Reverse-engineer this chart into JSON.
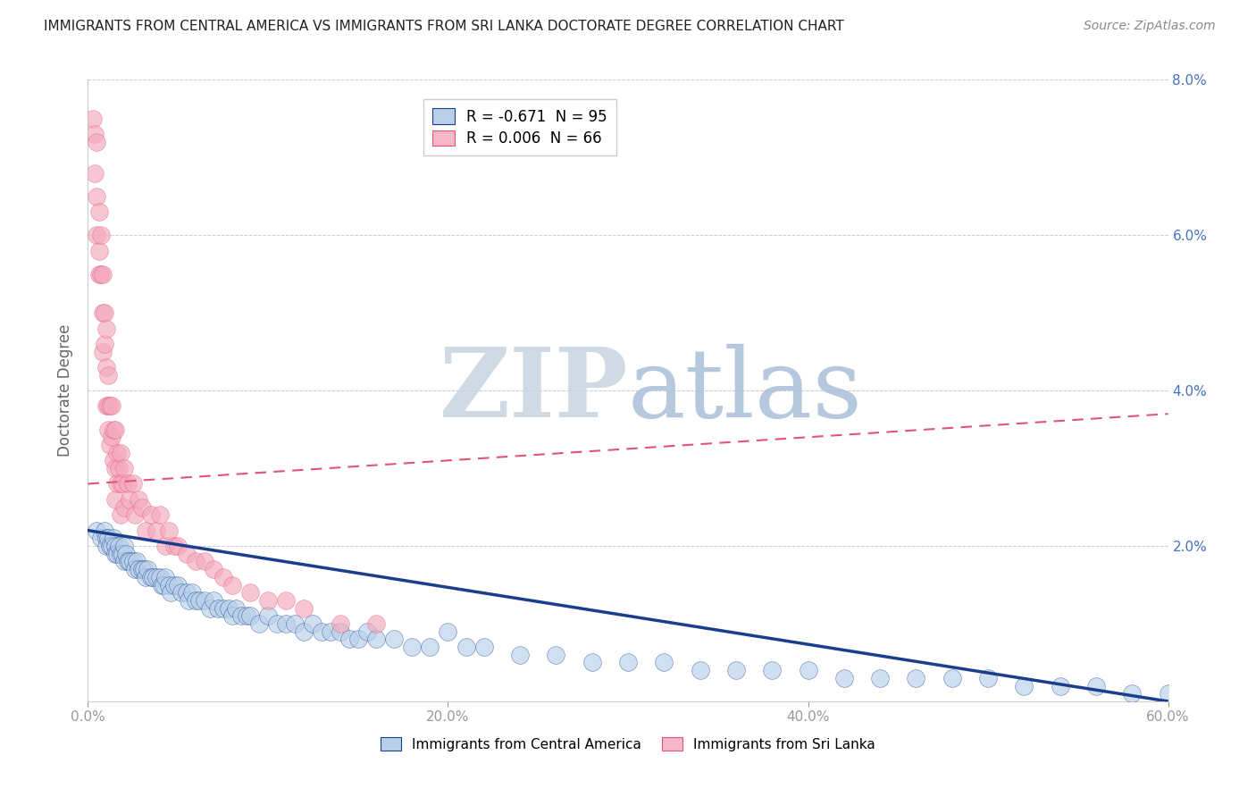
{
  "title": "IMMIGRANTS FROM CENTRAL AMERICA VS IMMIGRANTS FROM SRI LANKA DOCTORATE DEGREE CORRELATION CHART",
  "source": "Source: ZipAtlas.com",
  "ylabel": "Doctorate Degree",
  "xlabel": "",
  "xlim": [
    0.0,
    0.6
  ],
  "ylim": [
    0.0,
    0.08
  ],
  "xtick_labels": [
    "0.0%",
    "20.0%",
    "40.0%",
    "60.0%"
  ],
  "xtick_vals": [
    0.0,
    0.2,
    0.4,
    0.6
  ],
  "ytick_labels_right": [
    "",
    "2.0%",
    "4.0%",
    "6.0%",
    "8.0%"
  ],
  "ytick_vals": [
    0.0,
    0.02,
    0.04,
    0.06,
    0.08
  ],
  "legend_blue_label": "R = -0.671  N = 95",
  "legend_pink_label": "R = 0.006  N = 66",
  "legend_blue_color": "#b8d0ea",
  "legend_pink_color": "#f4b8c8",
  "trend_blue_color": "#1a3e8c",
  "trend_pink_color": "#e05575",
  "scatter_blue_color": "#b8d0ea",
  "scatter_pink_color": "#f4a8be",
  "watermark_zip": "ZIP",
  "watermark_atlas": "atlas",
  "blue_R": -0.671,
  "blue_N": 95,
  "pink_R": 0.006,
  "pink_N": 66,
  "blue_trend_x0": 0.0,
  "blue_trend_y0": 0.022,
  "blue_trend_x1": 0.6,
  "blue_trend_y1": 0.0,
  "pink_trend_x0": 0.0,
  "pink_trend_y0": 0.028,
  "pink_trend_x1": 0.6,
  "pink_trend_y1": 0.037,
  "grid_color": "#cccccc",
  "bg_color": "#ffffff",
  "title_color": "#222222",
  "axis_label_color": "#666666",
  "tick_color": "#999999",
  "watermark_color_zip": "#c8d4e0",
  "watermark_color_atlas": "#a8bfd8",
  "blue_x": [
    0.005,
    0.007,
    0.009,
    0.01,
    0.01,
    0.011,
    0.012,
    0.013,
    0.014,
    0.015,
    0.015,
    0.016,
    0.017,
    0.018,
    0.019,
    0.02,
    0.02,
    0.021,
    0.022,
    0.023,
    0.025,
    0.026,
    0.027,
    0.028,
    0.03,
    0.031,
    0.032,
    0.033,
    0.035,
    0.036,
    0.038,
    0.04,
    0.041,
    0.042,
    0.043,
    0.045,
    0.046,
    0.048,
    0.05,
    0.052,
    0.055,
    0.056,
    0.058,
    0.06,
    0.062,
    0.065,
    0.068,
    0.07,
    0.072,
    0.075,
    0.078,
    0.08,
    0.082,
    0.085,
    0.088,
    0.09,
    0.095,
    0.1,
    0.105,
    0.11,
    0.115,
    0.12,
    0.125,
    0.13,
    0.135,
    0.14,
    0.145,
    0.15,
    0.155,
    0.16,
    0.17,
    0.18,
    0.19,
    0.2,
    0.21,
    0.22,
    0.24,
    0.26,
    0.28,
    0.3,
    0.32,
    0.34,
    0.36,
    0.38,
    0.4,
    0.42,
    0.44,
    0.46,
    0.48,
    0.5,
    0.52,
    0.54,
    0.56,
    0.58,
    0.6
  ],
  "blue_y": [
    0.022,
    0.021,
    0.022,
    0.021,
    0.02,
    0.021,
    0.02,
    0.02,
    0.021,
    0.02,
    0.019,
    0.019,
    0.02,
    0.019,
    0.019,
    0.02,
    0.018,
    0.019,
    0.018,
    0.018,
    0.018,
    0.017,
    0.018,
    0.017,
    0.017,
    0.017,
    0.016,
    0.017,
    0.016,
    0.016,
    0.016,
    0.016,
    0.015,
    0.015,
    0.016,
    0.015,
    0.014,
    0.015,
    0.015,
    0.014,
    0.014,
    0.013,
    0.014,
    0.013,
    0.013,
    0.013,
    0.012,
    0.013,
    0.012,
    0.012,
    0.012,
    0.011,
    0.012,
    0.011,
    0.011,
    0.011,
    0.01,
    0.011,
    0.01,
    0.01,
    0.01,
    0.009,
    0.01,
    0.009,
    0.009,
    0.009,
    0.008,
    0.008,
    0.009,
    0.008,
    0.008,
    0.007,
    0.007,
    0.009,
    0.007,
    0.007,
    0.006,
    0.006,
    0.005,
    0.005,
    0.005,
    0.004,
    0.004,
    0.004,
    0.004,
    0.003,
    0.003,
    0.003,
    0.003,
    0.003,
    0.002,
    0.002,
    0.002,
    0.001,
    0.001
  ],
  "pink_x": [
    0.003,
    0.004,
    0.004,
    0.005,
    0.005,
    0.005,
    0.006,
    0.006,
    0.006,
    0.007,
    0.007,
    0.008,
    0.008,
    0.008,
    0.009,
    0.009,
    0.01,
    0.01,
    0.01,
    0.011,
    0.011,
    0.011,
    0.012,
    0.012,
    0.013,
    0.013,
    0.014,
    0.014,
    0.015,
    0.015,
    0.015,
    0.016,
    0.016,
    0.017,
    0.018,
    0.018,
    0.018,
    0.019,
    0.02,
    0.02,
    0.022,
    0.023,
    0.025,
    0.026,
    0.028,
    0.03,
    0.032,
    0.035,
    0.038,
    0.04,
    0.043,
    0.045,
    0.048,
    0.05,
    0.055,
    0.06,
    0.065,
    0.07,
    0.075,
    0.08,
    0.09,
    0.1,
    0.11,
    0.12,
    0.14,
    0.16
  ],
  "pink_y": [
    0.075,
    0.073,
    0.068,
    0.072,
    0.065,
    0.06,
    0.063,
    0.058,
    0.055,
    0.06,
    0.055,
    0.055,
    0.05,
    0.045,
    0.05,
    0.046,
    0.048,
    0.043,
    0.038,
    0.042,
    0.038,
    0.035,
    0.038,
    0.033,
    0.038,
    0.034,
    0.035,
    0.031,
    0.035,
    0.03,
    0.026,
    0.032,
    0.028,
    0.03,
    0.032,
    0.028,
    0.024,
    0.028,
    0.03,
    0.025,
    0.028,
    0.026,
    0.028,
    0.024,
    0.026,
    0.025,
    0.022,
    0.024,
    0.022,
    0.024,
    0.02,
    0.022,
    0.02,
    0.02,
    0.019,
    0.018,
    0.018,
    0.017,
    0.016,
    0.015,
    0.014,
    0.013,
    0.013,
    0.012,
    0.01,
    0.01
  ]
}
